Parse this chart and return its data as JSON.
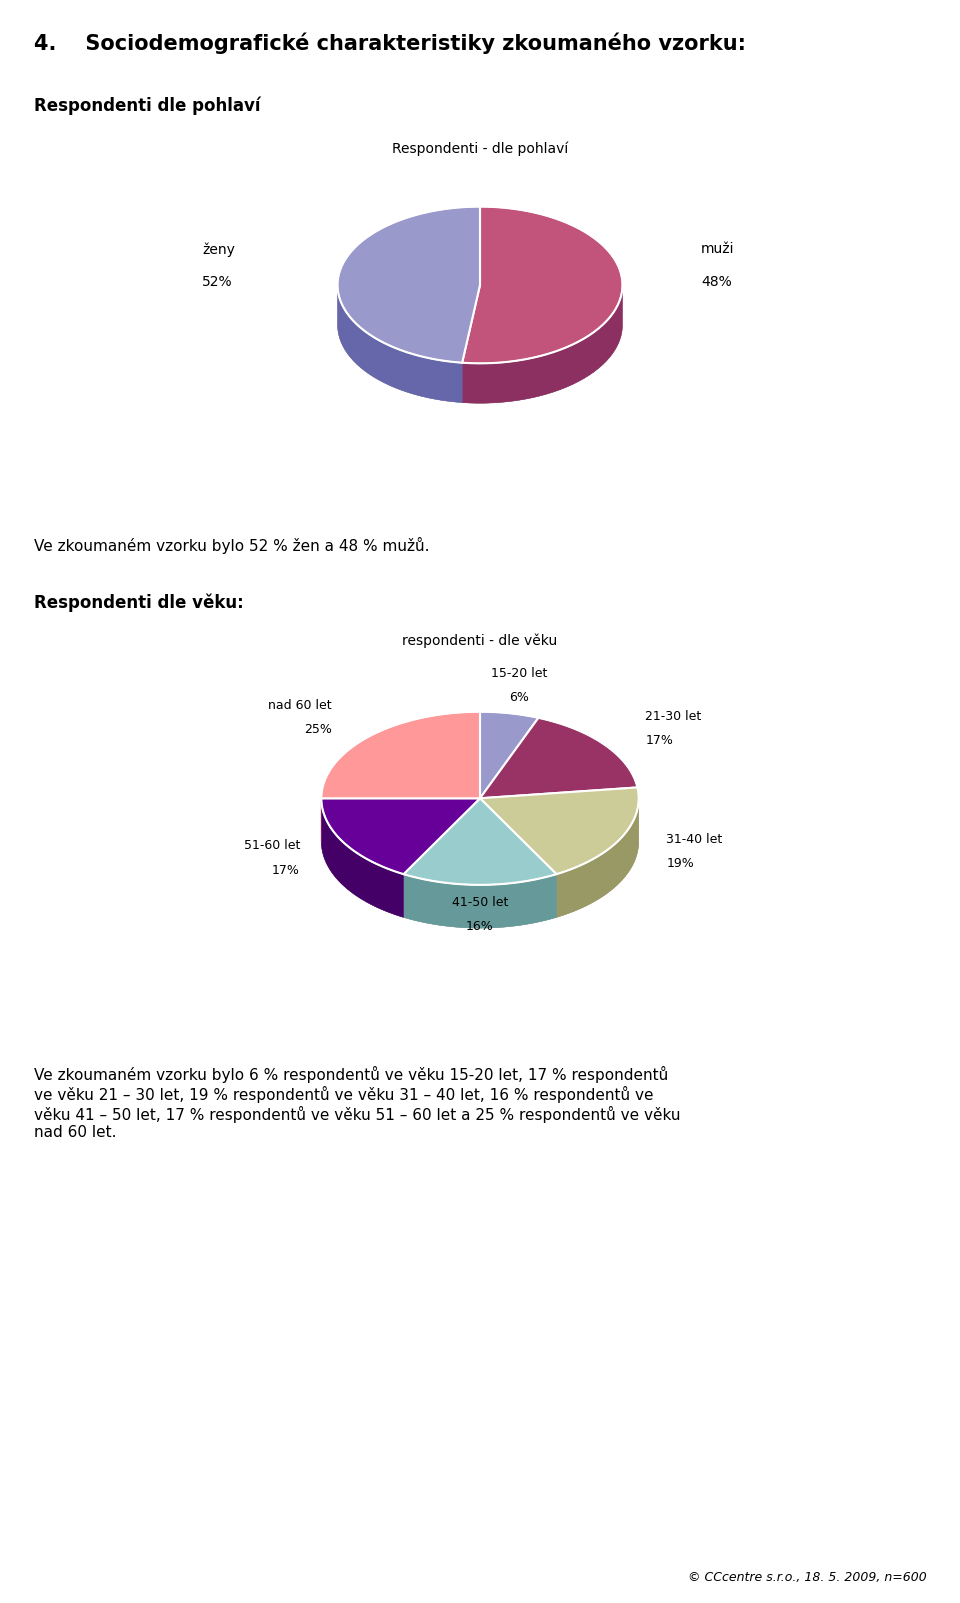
{
  "title": "4.    Sociodemografické charakteristiky zkoumaného vzorku:",
  "section1_label": "Respondenti dle pohlaví",
  "pie1_title": "Respondenti - dle pohlaví",
  "pie1_values": [
    52,
    48
  ],
  "pie1_colors": [
    "#C2537A",
    "#9999CC"
  ],
  "pie1_side_colors": [
    "#8B3060",
    "#6666AA"
  ],
  "pie1_label_names": [
    "ženy",
    "muži"
  ],
  "pie1_pcts": [
    "52%",
    "48%"
  ],
  "text1": "Ve zkoumaném vzorku bylo 52 % žen a 48 % mužů.",
  "section2_label": "Respondenti dle věku:",
  "pie2_title": "respondenti - dle věku",
  "pie2_label_names": [
    "15-20 let",
    "21-30 let",
    "31-40 let",
    "41-50 let",
    "51-60 let",
    "nad 60 let"
  ],
  "pie2_pcts": [
    "6%",
    "17%",
    "19%",
    "16%",
    "17%",
    "25%"
  ],
  "pie2_values": [
    6,
    17,
    19,
    16,
    17,
    25
  ],
  "pie2_colors": [
    "#9999CC",
    "#993366",
    "#CCCC99",
    "#99CCCC",
    "#660099",
    "#FF9999"
  ],
  "pie2_side_colors": [
    "#6666AA",
    "#661144",
    "#999966",
    "#669999",
    "#440066",
    "#CC6666"
  ],
  "text2": "Ve zkoumaném vzorku bylo 6 % respondentů ve věku 15-20 let, 17 % respondentů\nve věku 21 – 30 let, 19 % respondentů ve věku 31 – 40 let, 16 % respondentů ve\nvěku 41 – 50 let, 17 % respondentů ve věku 51 – 60 let a 25 % respondentů ve věku\nnad 60 let.",
  "footer": "© CCcentre s.r.o., 18. 5. 2009, n=600",
  "bg_color": "#FFFFFF"
}
